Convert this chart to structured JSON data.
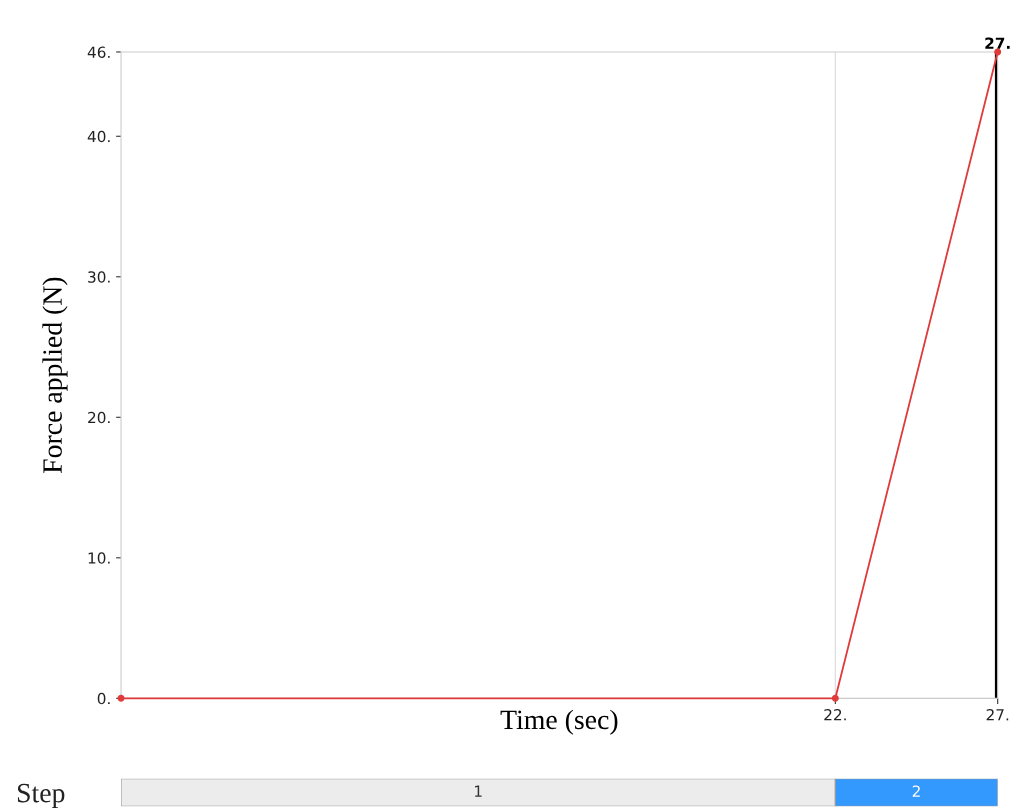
{
  "chart_data": [
    {
      "type": "line",
      "xlabel": "Time (sec)",
      "ylabel": "Force applied (N)",
      "series": [
        {
          "color": "#e03a3a",
          "x": [
            0,
            22,
            27
          ],
          "values": [
            0,
            0,
            46
          ]
        }
      ],
      "marker": "circle",
      "line_style": "solid",
      "grid": false,
      "legend": false,
      "xlim": [
        0,
        27
      ],
      "ylim": [
        0,
        46
      ],
      "xticks": [
        {
          "value": 22,
          "label": "22."
        },
        {
          "value": 27,
          "label": "27."
        }
      ],
      "yticks": [
        {
          "value": 0,
          "label": "0."
        },
        {
          "value": 10,
          "label": "10."
        },
        {
          "value": 20,
          "label": "20."
        },
        {
          "value": 30,
          "label": "30."
        },
        {
          "value": 40,
          "label": "40."
        },
        {
          "value": 46,
          "label": "46."
        }
      ],
      "ref_lines": [
        {
          "axis": "x",
          "value": 22,
          "color": "#e0e0e0"
        },
        {
          "axis": "x",
          "value": 27,
          "label": "27.",
          "color": "#000000"
        }
      ]
    },
    {
      "type": "bar",
      "orientation": "horizontal",
      "stacked": true,
      "categories": [
        "Step"
      ],
      "xlim": [
        0,
        27
      ],
      "tick_labels": "y",
      "series": [
        {
          "name": "1",
          "color": "#ececec",
          "values": [
            22
          ]
        },
        {
          "name": "2",
          "color": "#3399ff",
          "values": [
            5
          ]
        }
      ]
    }
  ]
}
